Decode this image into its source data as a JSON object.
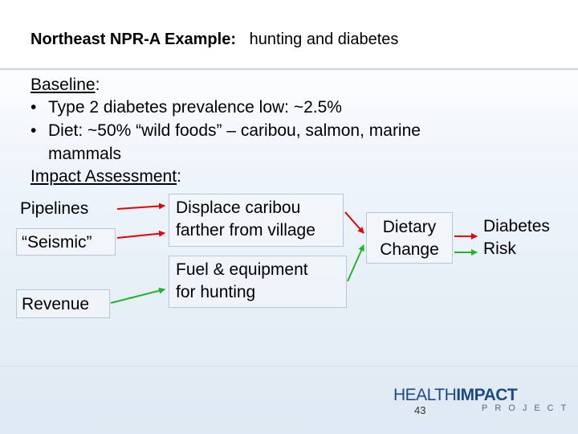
{
  "title": {
    "bold": "Northeast NPR-A Example:",
    "rest": "hunting and diabetes"
  },
  "baseline": {
    "heading": "Baseline",
    "heading_suffix": ":",
    "bullets": [
      {
        "line1": "Type 2 diabetes prevalence low: ~2.5%"
      },
      {
        "line1": "Diet: ~50% “wild foods” – caribou, salmon, marine",
        "line2": "mammals"
      }
    ]
  },
  "impact": {
    "heading": "Impact Assessment",
    "heading_suffix": ":"
  },
  "diagram": {
    "sources": [
      "Pipelines",
      "“Seismic”",
      "Revenue"
    ],
    "mid_top": [
      "Displace caribou",
      "farther from village"
    ],
    "mid_bottom": [
      "Fuel & equipment",
      "for hunting"
    ],
    "dietary": [
      "Dietary",
      "Change"
    ],
    "diabetes": [
      "Diabetes",
      "Risk"
    ],
    "arrow_colors": {
      "negative": "#e0000b",
      "positive": "#1fb52a"
    }
  },
  "footer": {
    "logo_health": "HEALTH",
    "logo_impact": "IMPACT",
    "logo_project": "PROJECT",
    "page_number": "43"
  }
}
